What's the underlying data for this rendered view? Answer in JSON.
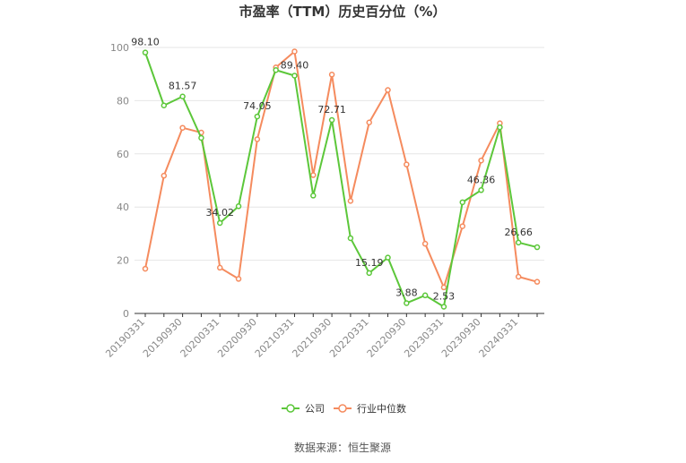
{
  "chart_data": {
    "type": "line",
    "title": "市盈率（TTM）历史百分位（%）",
    "xlabel": "",
    "ylabel": "",
    "ylim": [
      0,
      100
    ],
    "yticks": [
      0,
      20,
      40,
      60,
      80,
      100
    ],
    "x_tick_labels": [
      "20190331",
      "20190930",
      "20200331",
      "20200930",
      "20210331",
      "20210930",
      "20220331",
      "20220930",
      "20230331",
      "20230930",
      "20240331"
    ],
    "categories": [
      "20190331",
      "20190630",
      "20190930",
      "20191231",
      "20200331",
      "20200630",
      "20200930",
      "20201231",
      "20210331",
      "20210630",
      "20210930",
      "20211231",
      "20220331",
      "20220630",
      "20220930",
      "20221231",
      "20230331",
      "20230630",
      "20230930",
      "20231231",
      "20240331",
      "20240630"
    ],
    "series": [
      {
        "name": "公司",
        "color": "#5cc73a",
        "values": [
          98.1,
          78.2,
          81.57,
          66.0,
          34.02,
          40.3,
          74.05,
          91.5,
          89.4,
          44.3,
          72.71,
          28.3,
          15.19,
          21.0,
          3.88,
          6.8,
          2.53,
          41.8,
          46.36,
          70.0,
          26.66,
          24.9
        ]
      },
      {
        "name": "行业中位数",
        "color": "#f58b5e",
        "values": [
          16.8,
          51.8,
          69.8,
          68.0,
          17.2,
          13.0,
          65.5,
          92.5,
          98.5,
          52.0,
          89.8,
          42.3,
          71.8,
          84.0,
          56.0,
          26.2,
          9.8,
          32.8,
          57.5,
          71.5,
          13.8,
          11.9
        ]
      }
    ],
    "data_labels": [
      {
        "index": 0,
        "text": "98.10"
      },
      {
        "index": 2,
        "text": "81.57"
      },
      {
        "index": 4,
        "text": "34.02"
      },
      {
        "index": 6,
        "text": "74.05"
      },
      {
        "index": 8,
        "text": "89.40"
      },
      {
        "index": 10,
        "text": "72.71"
      },
      {
        "index": 12,
        "text": "15.19"
      },
      {
        "index": 14,
        "text": "3.88"
      },
      {
        "index": 16,
        "text": "2.53"
      },
      {
        "index": 18,
        "text": "46.36"
      },
      {
        "index": 20,
        "text": "26.66"
      }
    ],
    "legend": {
      "position": "bottom",
      "entries": [
        "公司",
        "行业中位数"
      ]
    },
    "grid": true
  },
  "source_text": "数据来源：恒生聚源"
}
